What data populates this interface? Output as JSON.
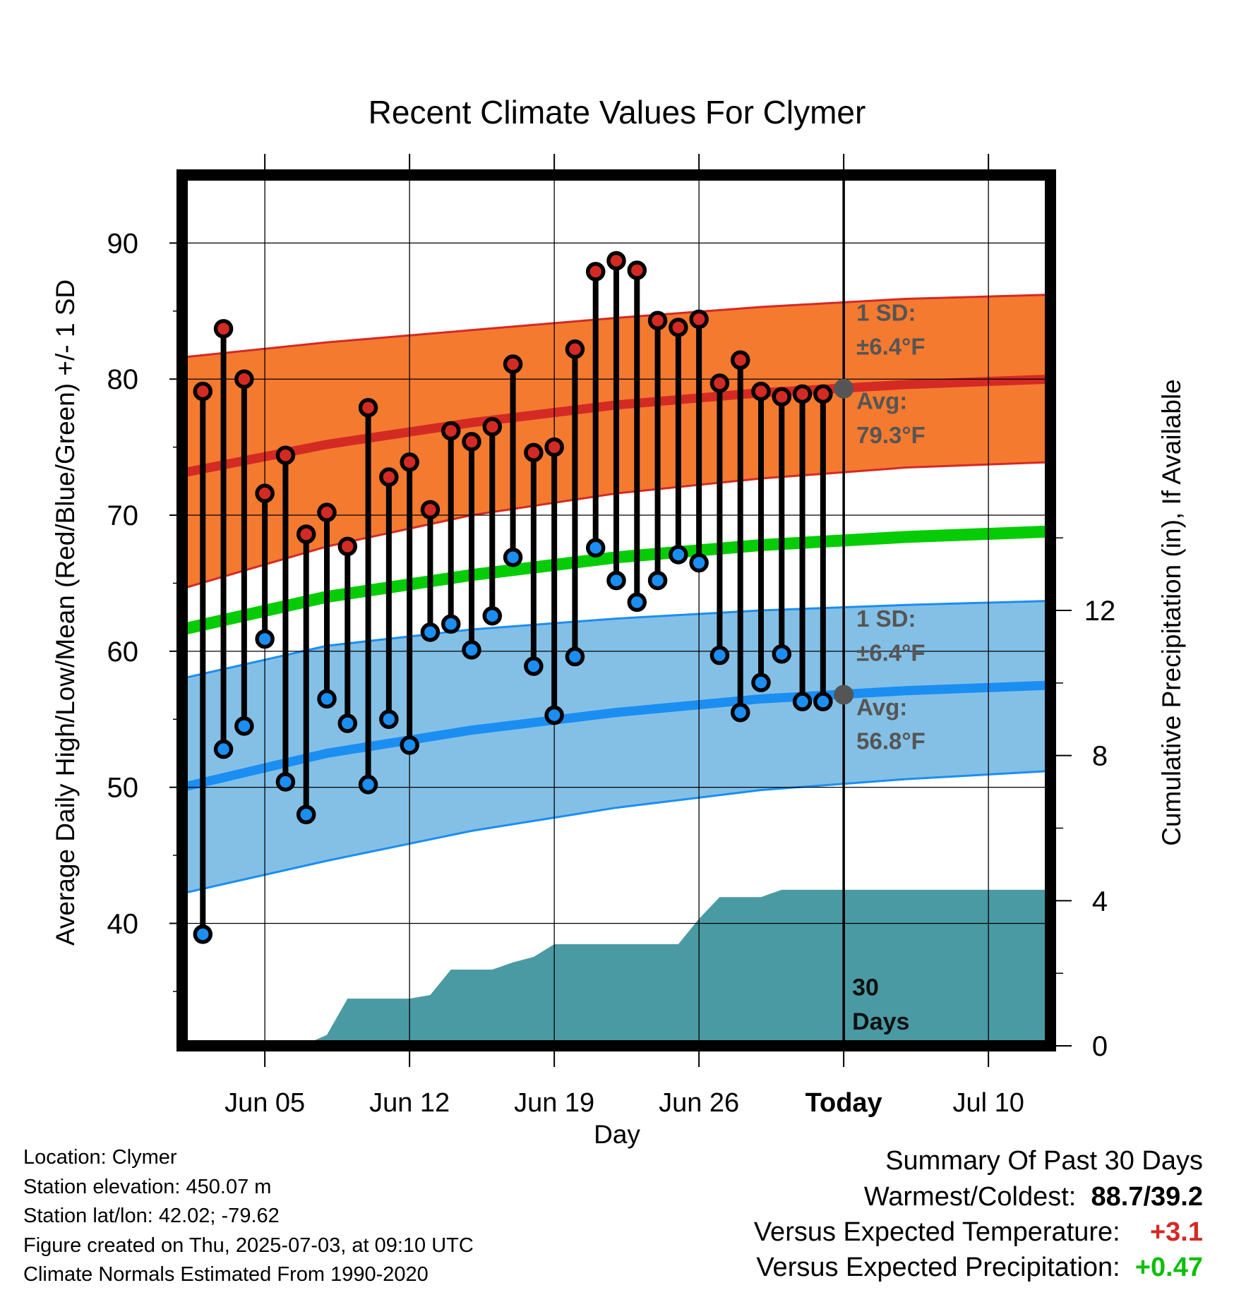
{
  "chart_data": {
    "type": "line",
    "title": "Recent Climate Values For Clymer",
    "xlabel": "Day",
    "ylabel": "Average Daily High/Low/Mean (Red/Blue/Green) +/- 1 SD",
    "y2label": "Cumulative Precipitation (in), If Available",
    "ylim": [
      31,
      95
    ],
    "y2lim": [
      0,
      24
    ],
    "yticks": [
      40,
      50,
      60,
      70,
      80,
      90
    ],
    "y2ticks": [
      0,
      4,
      8,
      12
    ],
    "xlim": [
      "2025-06-01",
      "2025-07-13"
    ],
    "xticks": [
      {
        "date": "2025-06-05",
        "label": "Jun 05"
      },
      {
        "date": "2025-06-12",
        "label": "Jun 12"
      },
      {
        "date": "2025-06-19",
        "label": "Jun 19"
      },
      {
        "date": "2025-06-26",
        "label": "Jun 26"
      },
      {
        "date": "2025-07-03",
        "label": "Today"
      },
      {
        "date": "2025-07-10",
        "label": "Jul 10"
      }
    ],
    "today": "2025-07-03",
    "today_label": [
      "30",
      "Days"
    ],
    "grid": true,
    "colors": {
      "high_band": "#f47a30",
      "high_line": "#d42a24",
      "low_band": "#84c0e6",
      "low_line": "#1b8ef2",
      "mean_line": "#06cc06",
      "precip": "#4a9aa4",
      "high_marker": "#d42a24",
      "low_marker": "#1b8ef2",
      "annotation": "#555555"
    },
    "normals": {
      "dates": [
        "2025-06-01",
        "2025-06-08",
        "2025-06-15",
        "2025-06-22",
        "2025-06-29",
        "2025-07-06",
        "2025-07-13"
      ],
      "high_avg": [
        73.1,
        75.2,
        76.8,
        78.1,
        79.0,
        79.6,
        80.0
      ],
      "high_sd_upper": [
        81.6,
        82.7,
        83.6,
        84.5,
        85.3,
        85.9,
        86.2
      ],
      "high_sd_lower": [
        64.6,
        67.7,
        70.0,
        71.6,
        72.7,
        73.5,
        73.9
      ],
      "mean": [
        61.6,
        64.0,
        65.6,
        66.9,
        67.8,
        68.4,
        68.8
      ],
      "low_avg": [
        50.0,
        52.5,
        54.2,
        55.5,
        56.5,
        57.1,
        57.5
      ],
      "low_sd_upper": [
        58.0,
        60.4,
        61.6,
        62.4,
        63.0,
        63.4,
        63.7
      ],
      "low_sd_lower": [
        42.2,
        44.6,
        46.8,
        48.5,
        49.8,
        50.6,
        51.2
      ]
    },
    "annotations": {
      "high": {
        "sd_label": "1 SD:",
        "sd_value": "±6.4°F",
        "avg_label": "Avg:",
        "avg_value": "79.3°F",
        "avg": 79.3
      },
      "low": {
        "sd_label": "1 SD:",
        "sd_value": "±6.4°F",
        "avg_label": "Avg:",
        "avg_value": "56.8°F",
        "avg": 56.8
      }
    },
    "observed": {
      "dates": [
        "2025-06-02",
        "2025-06-03",
        "2025-06-04",
        "2025-06-05",
        "2025-06-06",
        "2025-06-07",
        "2025-06-08",
        "2025-06-09",
        "2025-06-10",
        "2025-06-11",
        "2025-06-12",
        "2025-06-13",
        "2025-06-14",
        "2025-06-15",
        "2025-06-16",
        "2025-06-17",
        "2025-06-18",
        "2025-06-19",
        "2025-06-20",
        "2025-06-21",
        "2025-06-22",
        "2025-06-23",
        "2025-06-24",
        "2025-06-25",
        "2025-06-26",
        "2025-06-27",
        "2025-06-28",
        "2025-06-29",
        "2025-06-30",
        "2025-07-01",
        "2025-07-02"
      ],
      "high": [
        79.1,
        83.7,
        80.0,
        71.6,
        74.4,
        68.6,
        70.2,
        67.7,
        77.9,
        72.8,
        73.9,
        70.4,
        76.2,
        75.4,
        76.5,
        81.1,
        74.6,
        75.0,
        82.2,
        87.9,
        88.7,
        88.0,
        84.3,
        83.8,
        84.4,
        79.7,
        81.4,
        79.1,
        78.7,
        78.9,
        78.9
      ],
      "low": [
        39.2,
        52.8,
        54.5,
        60.9,
        50.4,
        48.0,
        56.5,
        54.7,
        50.2,
        55.0,
        53.1,
        61.4,
        62.0,
        60.1,
        62.6,
        66.9,
        58.9,
        55.3,
        59.6,
        67.6,
        65.2,
        63.6,
        65.2,
        67.1,
        66.5,
        59.7,
        55.5,
        57.7,
        59.8,
        56.3,
        56.3
      ]
    },
    "precip_cumulative": {
      "dates": [
        "2025-06-01",
        "2025-06-06",
        "2025-06-07",
        "2025-06-08",
        "2025-06-09",
        "2025-06-10",
        "2025-06-11",
        "2025-06-12",
        "2025-06-13",
        "2025-06-14",
        "2025-06-15",
        "2025-06-16",
        "2025-06-17",
        "2025-06-18",
        "2025-06-19",
        "2025-06-20",
        "2025-06-21",
        "2025-06-22",
        "2025-06-23",
        "2025-06-24",
        "2025-06-25",
        "2025-06-26",
        "2025-06-27",
        "2025-06-28",
        "2025-06-29",
        "2025-06-30",
        "2025-07-13"
      ],
      "values": [
        0,
        0,
        0.05,
        0.3,
        1.3,
        1.3,
        1.3,
        1.3,
        1.4,
        2.1,
        2.1,
        2.1,
        2.3,
        2.45,
        2.8,
        2.8,
        2.8,
        2.8,
        2.8,
        2.8,
        2.8,
        3.5,
        4.1,
        4.1,
        4.1,
        4.3,
        4.3
      ]
    }
  },
  "footer": {
    "location": "Location: Clymer",
    "elevation": "Station elevation: 450.07 m",
    "latlon": "Station lat/lon: 42.02; -79.62",
    "created": "Figure created on Thu, 2025-07-03, at 09:10 UTC",
    "normals": "Climate Normals Estimated From 1990-2020"
  },
  "summary": {
    "title": "Summary Of Past 30 Days",
    "warm_cold_label": "Warmest/Coldest:",
    "warm": "88.7",
    "sep": "/",
    "cold": "39.2",
    "temp_label": "Versus Expected Temperature:",
    "temp_value": "+3.1",
    "temp_color": "#d42a24",
    "precip_label": "Versus Expected Precipitation:",
    "precip_value": "+0.47",
    "precip_color": "#0cbf0c"
  }
}
